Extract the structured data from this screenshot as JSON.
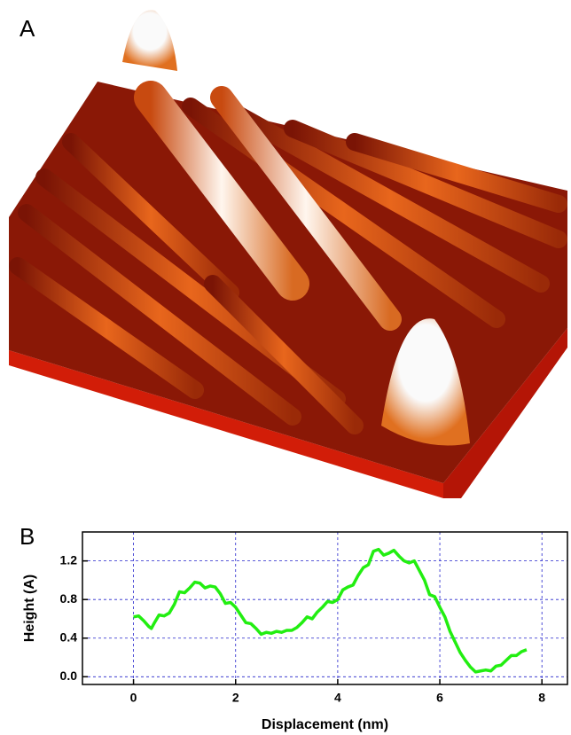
{
  "panel_labels": [
    "A",
    "B"
  ],
  "chart_data": {
    "type": "line",
    "x_label": "Displacement (nm)",
    "y_label": "Height (A)",
    "x": [
      0,
      0.1,
      0.2,
      0.3,
      0.35,
      0.4,
      0.5,
      0.6,
      0.7,
      0.8,
      0.9,
      1.0,
      1.1,
      1.2,
      1.3,
      1.4,
      1.5,
      1.6,
      1.7,
      1.8,
      1.9,
      2.0,
      2.1,
      2.2,
      2.3,
      2.4,
      2.5,
      2.6,
      2.7,
      2.8,
      2.9,
      3.0,
      3.1,
      3.2,
      3.3,
      3.4,
      3.5,
      3.6,
      3.7,
      3.8,
      3.9,
      4.0,
      4.1,
      4.2,
      4.3,
      4.4,
      4.5,
      4.6,
      4.7,
      4.8,
      4.9,
      5.0,
      5.1,
      5.2,
      5.3,
      5.4,
      5.5,
      5.6,
      5.7,
      5.8,
      5.9,
      6.0,
      6.1,
      6.2,
      6.3,
      6.4,
      6.5,
      6.6,
      6.7,
      6.8,
      6.9,
      7.0,
      7.1,
      7.2,
      7.3,
      7.4,
      7.5,
      7.6,
      7.7
    ],
    "series": [
      {
        "color": "#22ee11",
        "values": [
          0.62,
          0.63,
          0.58,
          0.52,
          0.5,
          0.55,
          0.64,
          0.63,
          0.66,
          0.75,
          0.88,
          0.87,
          0.92,
          0.98,
          0.97,
          0.92,
          0.94,
          0.93,
          0.86,
          0.76,
          0.77,
          0.72,
          0.64,
          0.56,
          0.55,
          0.5,
          0.44,
          0.46,
          0.45,
          0.47,
          0.46,
          0.48,
          0.48,
          0.51,
          0.56,
          0.62,
          0.6,
          0.67,
          0.72,
          0.78,
          0.77,
          0.8,
          0.9,
          0.93,
          0.95,
          1.05,
          1.13,
          1.16,
          1.3,
          1.32,
          1.26,
          1.28,
          1.31,
          1.25,
          1.2,
          1.18,
          1.2,
          1.1,
          1.0,
          0.85,
          0.83,
          0.72,
          0.62,
          0.47,
          0.36,
          0.25,
          0.17,
          0.1,
          0.05,
          0.06,
          0.07,
          0.06,
          0.11,
          0.12,
          0.17,
          0.22,
          0.22,
          0.26,
          0.28
        ]
      }
    ],
    "xlim": [
      -1,
      8.5
    ],
    "ylim": [
      -0.08,
      1.5
    ],
    "xticks": [
      0,
      2,
      4,
      6,
      8
    ],
    "yticks": [
      {
        "value": 0,
        "label": "0.0"
      },
      {
        "value": 0.4,
        "label": "0.4"
      },
      {
        "value": 0.8,
        "label": "0.8"
      },
      {
        "value": 1.2,
        "label": "1.2"
      }
    ],
    "grid": true,
    "grid_color": "#2222cc"
  }
}
